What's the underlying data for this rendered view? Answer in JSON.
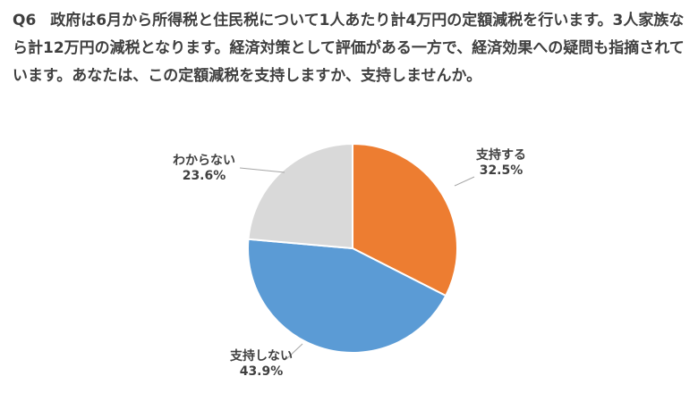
{
  "question": {
    "number": "Q6",
    "text": "政府は6月から所得税と住民税について1人あたり計4万円の定額減税を行います。3人家族なら計12万円の減税となります。経済対策として評価がある一方で、経済効果への疑問も指摘されています。あなたは、この定額減税を支持しますか、支持しませんか。"
  },
  "chart_data": {
    "type": "pie",
    "start_angle_deg": 0,
    "direction": "clockwise",
    "slices": [
      {
        "label": "支持する",
        "value": 32.5,
        "value_label": "32.5%",
        "color": "#ED7D31"
      },
      {
        "label": "支持しない",
        "value": 43.9,
        "value_label": "43.9%",
        "color": "#5B9BD5"
      },
      {
        "label": "わからない",
        "value": 23.6,
        "value_label": "23.6%",
        "color": "#D9D9D9"
      }
    ]
  }
}
